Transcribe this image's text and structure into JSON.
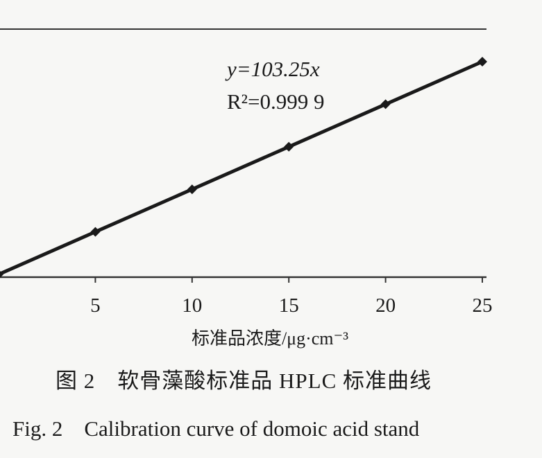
{
  "chart_data": {
    "type": "line",
    "x": [
      0,
      5,
      10,
      15,
      20,
      25
    ],
    "y": [
      0,
      516.25,
      1032.5,
      1548.75,
      2065.0,
      2581.25
    ],
    "series": [
      {
        "x": [
          0,
          5,
          10,
          15,
          20,
          25
        ],
        "y": [
          0,
          516.25,
          1032.5,
          1548.75,
          2065.0,
          2581.25
        ]
      }
    ],
    "xticks": [
      "5",
      "10",
      "15",
      "20",
      "25"
    ],
    "xlabel": "标准品浓度/μg·cm⁻³",
    "annotations": {
      "equation": "y=103.25x",
      "r_squared": "R²=0.999 9"
    },
    "grid": false,
    "colors": {
      "line": "#1a1a1a",
      "axis": "#333333"
    }
  },
  "caption": {
    "chinese": "图 2　软骨藻酸标准品 HPLC 标准曲线",
    "english": "Fig. 2　Calibration curve of domoic acid stand"
  }
}
